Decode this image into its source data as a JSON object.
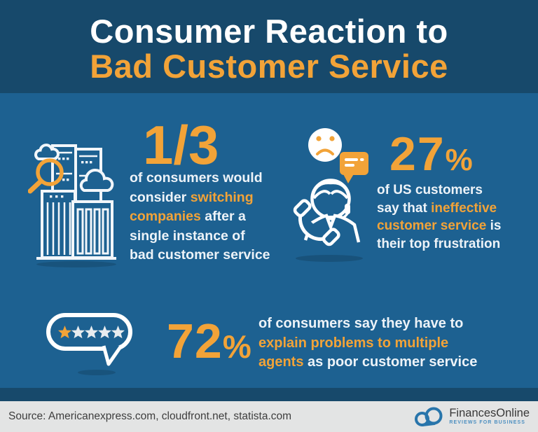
{
  "meta": {
    "type_of_graphic": "statistics infographic",
    "colors": {
      "header_bg": "#17496B",
      "body_bg": "#1D6191",
      "accent_orange": "#F2A338",
      "text_white": "#EDF3F8",
      "star_inactive": "#E8ECEF",
      "footer_bg": "#E3E4E4",
      "footer_text": "#3E3E3E",
      "logo_blue": "#2875AB",
      "tagline_blue": "#4C8FC0"
    }
  },
  "header": {
    "title_line1": "Consumer Reaction to",
    "title_line2": "Bad Customer Service"
  },
  "stats": [
    {
      "name": "switching-companies",
      "icon": "building-magnifier-icon",
      "value": "1/3",
      "suffix": "",
      "lines": [
        [
          {
            "t": "of consumers would",
            "h": false
          }
        ],
        [
          {
            "t": "consider ",
            "h": false
          },
          {
            "t": "switching",
            "h": true
          }
        ],
        [
          {
            "t": "companies",
            "h": true
          },
          {
            "t": " after a",
            "h": false
          }
        ],
        [
          {
            "t": "single instance of",
            "h": false
          }
        ],
        [
          {
            "t": "bad customer service",
            "h": false
          }
        ]
      ]
    },
    {
      "name": "ineffective-customer-service",
      "icon": "support-agent-phone-icon",
      "value": "27",
      "suffix": "%",
      "lines": [
        [
          {
            "t": "of US customers",
            "h": false
          }
        ],
        [
          {
            "t": "say that ",
            "h": false
          },
          {
            "t": "ineffective",
            "h": true
          }
        ],
        [
          {
            "t": "customer service",
            "h": true
          },
          {
            "t": " is",
            "h": false
          }
        ],
        [
          {
            "t": "their top frustration",
            "h": false
          }
        ]
      ]
    },
    {
      "name": "explain-to-multiple-agents",
      "icon": "one-star-review-bubble-icon",
      "value": "72",
      "suffix": "%",
      "lines": [
        [
          {
            "t": "of consumers say they have to",
            "h": false
          }
        ],
        [
          {
            "t": "explain problems to multiple",
            "h": true
          }
        ],
        [
          {
            "t": "agents",
            "h": true
          },
          {
            "t": " as poor customer service",
            "h": false
          }
        ]
      ]
    }
  ],
  "footer": {
    "source": "Source: Americanexpress.com, cloudfront.net, statista.com",
    "brand": "FinancesOnline",
    "tagline": "REVIEWS FOR BUSINESS",
    "logo_icon": "cloud-logo-icon"
  },
  "chart_data": {
    "type": "table",
    "title": "Consumer Reaction to Bad Customer Service",
    "stats": [
      {
        "value": "1/3",
        "numeric": 0.333,
        "label": "of consumers would consider switching companies after a single instance of bad customer service"
      },
      {
        "value": "27%",
        "numeric": 27,
        "label": "of US customers say that ineffective customer service is their top frustration"
      },
      {
        "value": "72%",
        "numeric": 72,
        "label": "of consumers say they have to explain problems to multiple agents as poor customer service"
      }
    ],
    "sources": "Americanexpress.com, cloudfront.net, statista.com",
    "legend_position": "none",
    "grid": false
  }
}
